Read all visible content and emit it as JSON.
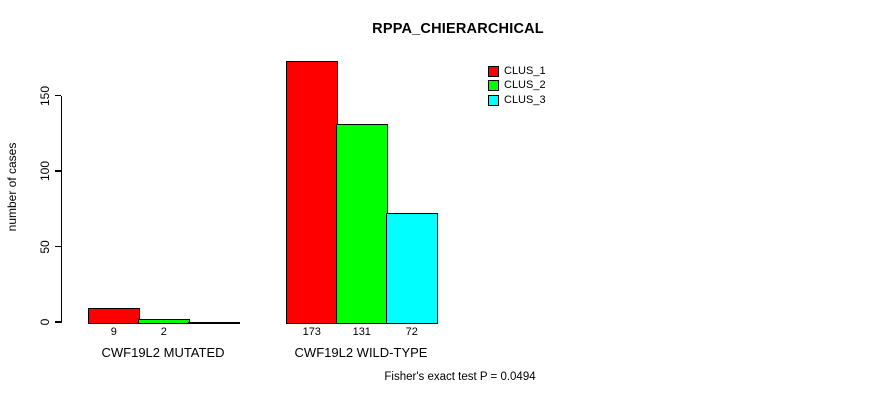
{
  "chart_data": {
    "type": "bar",
    "title": "RPPA_CHIERARCHICAL",
    "ylabel": "number of cases",
    "xlabel": "",
    "categories": [
      "CWF19L2 MUTATED",
      "CWF19L2 WILD-TYPE"
    ],
    "series": [
      {
        "name": "CLUS_1",
        "color": "#ff0000",
        "values": [
          9,
          173
        ]
      },
      {
        "name": "CLUS_2",
        "color": "#00ff00",
        "values": [
          2,
          131
        ]
      },
      {
        "name": "CLUS_3",
        "color": "#00ffff",
        "values": [
          0,
          72
        ]
      }
    ],
    "yticks": [
      0,
      50,
      100,
      150
    ],
    "ylim": [
      0,
      175
    ],
    "grid": false,
    "bar_value_labels": true,
    "hide_zero_value_labels": true,
    "legend": {
      "position": "top-right"
    },
    "annotation": "Fisher's exact test P = 0.0494",
    "background": "#ffffff",
    "bar_border_color": "#000000",
    "text_color": "#000000"
  }
}
